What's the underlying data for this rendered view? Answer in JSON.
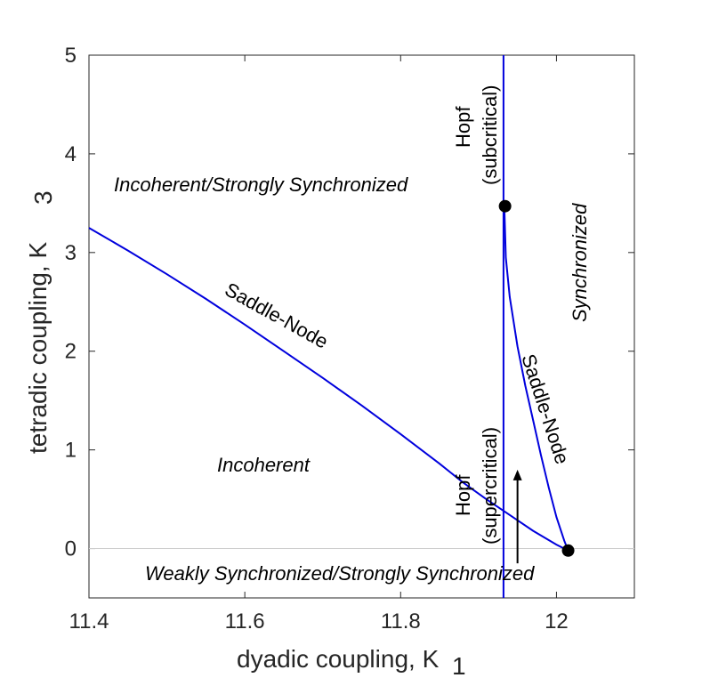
{
  "chart_data": {
    "type": "line",
    "xlabel": "dyadic coupling, K",
    "xlabel_sub": "1",
    "ylabel": "tetradic coupling, K",
    "ylabel_sub": "3",
    "xlim": [
      11.4,
      12.1
    ],
    "ylim": [
      -0.5,
      5
    ],
    "xticks": [
      {
        "value": 11.4,
        "label": "11.4"
      },
      {
        "value": 11.6,
        "label": "11.6"
      },
      {
        "value": 11.8,
        "label": "11.8"
      },
      {
        "value": 12.0,
        "label": "12"
      }
    ],
    "yticks": [
      {
        "value": 0,
        "label": "0"
      },
      {
        "value": 1,
        "label": "1"
      },
      {
        "value": 2,
        "label": "2"
      },
      {
        "value": 3,
        "label": "3"
      },
      {
        "value": 4,
        "label": "4"
      },
      {
        "value": 5,
        "label": "5"
      }
    ],
    "grid": false,
    "baseline_y": 0,
    "series": [
      {
        "name": "Saddle-Node (lower branch)",
        "color": "#0000dd",
        "x": [
          11.4,
          11.45,
          11.5,
          11.55,
          11.6,
          11.65,
          11.7,
          11.75,
          11.8,
          11.85,
          11.88,
          11.91,
          11.94,
          11.97,
          12.0,
          12.015
        ],
        "y": [
          3.25,
          3.02,
          2.78,
          2.53,
          2.27,
          2.0,
          1.73,
          1.45,
          1.16,
          0.86,
          0.67,
          0.5,
          0.34,
          0.18,
          0.04,
          -0.02
        ]
      },
      {
        "name": "Hopf",
        "color": "#0000dd",
        "x": [
          11.932,
          11.932
        ],
        "y": [
          -0.5,
          5
        ]
      },
      {
        "name": "Saddle-Node (upper branch)",
        "color": "#0000dd",
        "x": [
          11.933,
          11.935,
          11.94,
          11.95,
          11.96,
          11.97,
          11.98,
          11.99,
          12.0,
          12.01,
          12.015
        ],
        "y": [
          3.47,
          2.95,
          2.55,
          2.05,
          1.65,
          1.3,
          0.95,
          0.62,
          0.32,
          0.08,
          -0.02
        ]
      }
    ],
    "points": [
      {
        "name": "Bautin point",
        "x": 11.934,
        "y": 3.47
      },
      {
        "name": "Cusp point",
        "x": 12.015,
        "y": -0.02
      }
    ],
    "arrow": {
      "x": 11.95,
      "y_from": -0.15,
      "y_to": 0.8
    },
    "annotations": {
      "incoherent_strongly": "Incoherent/Strongly Synchronized",
      "incoherent": "Incoherent",
      "weakly_strongly": "Weakly Synchronized/Strongly Synchronized",
      "synchronized": "Synchronized",
      "saddle_node": "Saddle-Node",
      "hopf": "Hopf",
      "subcritical": "(subcritical)",
      "supercritical": "(supercritical)"
    }
  }
}
